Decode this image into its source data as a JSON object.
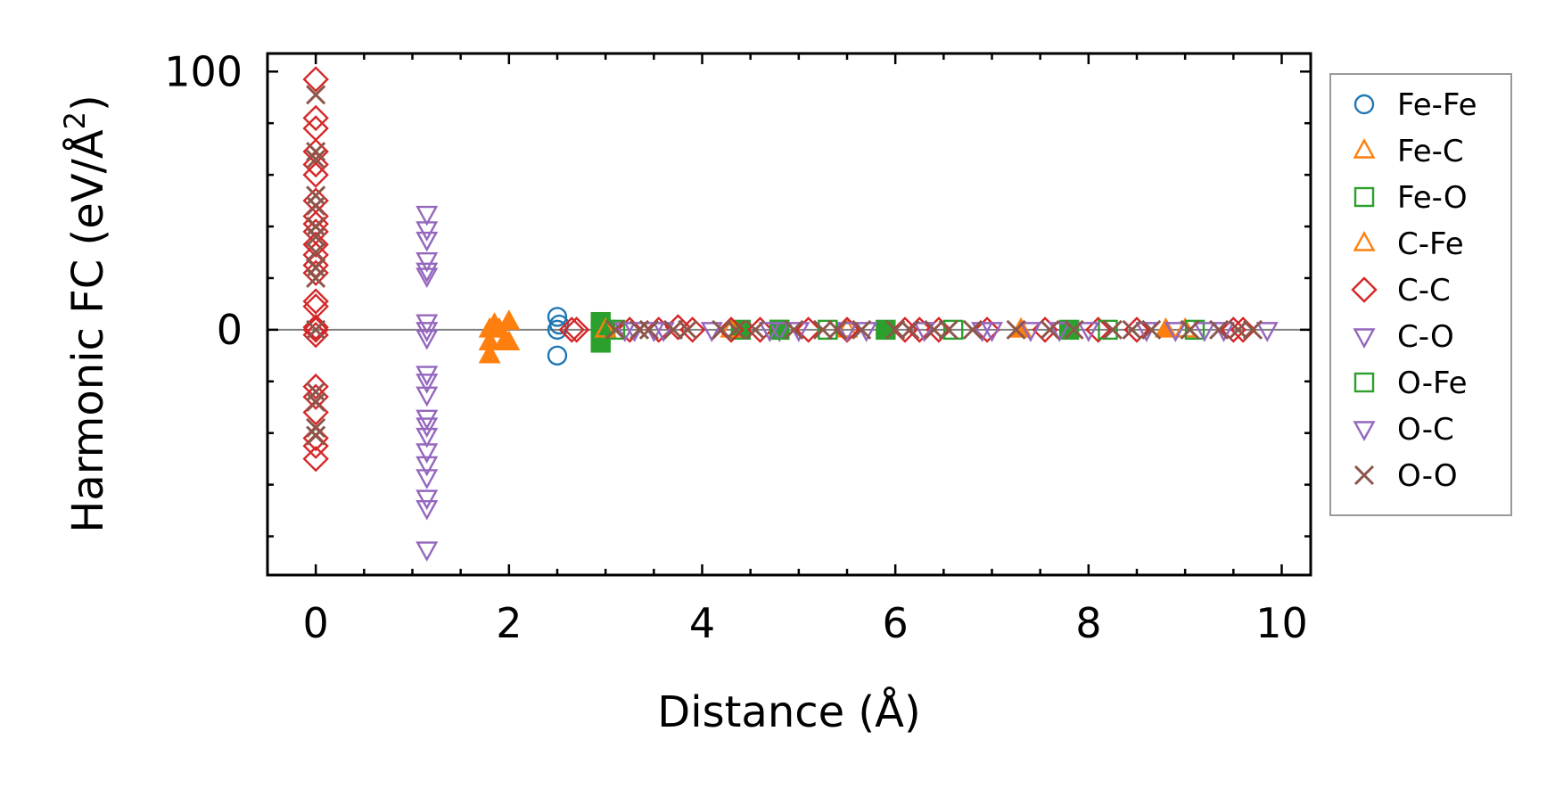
{
  "chart_data": {
    "type": "scatter",
    "xlabel": "Distance (Å)",
    "ylabel_main": "Harmonic FC (eV/Å",
    "ylabel_sup": "2",
    "ylabel_tail": ")",
    "xlim": [
      -0.5,
      10.3
    ],
    "ylim": [
      -95,
      107
    ],
    "xticks": [
      0,
      2,
      4,
      6,
      8,
      10
    ],
    "xtick_labels": [
      "0",
      "2",
      "4",
      "6",
      "8",
      "10"
    ],
    "yticks": [
      0,
      100
    ],
    "ytick_labels": [
      "0",
      "100"
    ],
    "zero_line": true,
    "grid": false,
    "legend_position": "outside-right",
    "series": [
      {
        "name": "Fe-Fe",
        "marker": "circle",
        "color": "#1f77b4",
        "filled": false,
        "points": [
          [
            2.5,
            5
          ],
          [
            2.5,
            0
          ],
          [
            2.5,
            -10
          ],
          [
            2.52,
            2
          ]
        ]
      },
      {
        "name": "Fe-C",
        "marker": "triangle-up",
        "color": "#ff7f0e",
        "filled": true,
        "points": [
          [
            1.8,
            0
          ],
          [
            1.8,
            -5
          ],
          [
            1.8,
            -10
          ],
          [
            1.85,
            2
          ],
          [
            1.9,
            0
          ],
          [
            1.95,
            -5
          ],
          [
            2.0,
            3
          ],
          [
            2.0,
            -5
          ],
          [
            7.3,
            0
          ],
          [
            8.8,
            0
          ]
        ]
      },
      {
        "name": "Fe-O",
        "marker": "square",
        "color": "#2ca02c",
        "filled": true,
        "points": [
          [
            2.95,
            3
          ],
          [
            2.95,
            0
          ],
          [
            2.95,
            -5
          ],
          [
            3.0,
            0
          ],
          [
            4.4,
            0
          ],
          [
            4.8,
            0
          ],
          [
            5.9,
            0
          ],
          [
            7.8,
            0
          ]
        ]
      },
      {
        "name": "C-Fe",
        "marker": "triangle-up",
        "color": "#ff7f0e",
        "filled": false,
        "points": [
          [
            3.0,
            0
          ],
          [
            4.3,
            0
          ],
          [
            5.5,
            0
          ],
          [
            7.3,
            0
          ],
          [
            9.0,
            0
          ]
        ]
      },
      {
        "name": "C-C",
        "marker": "diamond",
        "color": "#d62728",
        "filled": false,
        "points": [
          [
            0,
            97
          ],
          [
            0,
            82
          ],
          [
            0,
            78
          ],
          [
            0,
            69
          ],
          [
            0,
            64
          ],
          [
            0,
            60
          ],
          [
            0,
            50
          ],
          [
            0,
            44
          ],
          [
            0,
            41
          ],
          [
            0,
            38
          ],
          [
            0,
            33
          ],
          [
            0,
            29
          ],
          [
            0,
            25
          ],
          [
            0,
            22
          ],
          [
            0,
            11
          ],
          [
            0,
            9
          ],
          [
            0,
            1
          ],
          [
            0,
            0
          ],
          [
            0,
            -2
          ],
          [
            0,
            -22
          ],
          [
            0,
            -26
          ],
          [
            0,
            -32
          ],
          [
            0,
            -42
          ],
          [
            0,
            -45
          ],
          [
            0,
            -50
          ],
          [
            2.65,
            0
          ],
          [
            2.7,
            0
          ],
          [
            3.25,
            0
          ],
          [
            3.55,
            0
          ],
          [
            3.75,
            1
          ],
          [
            3.9,
            0
          ],
          [
            4.3,
            0
          ],
          [
            4.6,
            0
          ],
          [
            5.1,
            0
          ],
          [
            5.5,
            0
          ],
          [
            6.1,
            0
          ],
          [
            6.25,
            0
          ],
          [
            6.45,
            0
          ],
          [
            6.95,
            0
          ],
          [
            7.55,
            0
          ],
          [
            8.1,
            0
          ],
          [
            8.5,
            0
          ],
          [
            9.5,
            0
          ],
          [
            9.6,
            0
          ]
        ]
      },
      {
        "name": "C-O",
        "marker": "triangle-down",
        "color": "#9467bd",
        "filled": false,
        "points": [
          [
            1.15,
            45
          ],
          [
            1.15,
            39
          ],
          [
            1.15,
            35
          ],
          [
            1.15,
            27
          ],
          [
            1.15,
            23
          ],
          [
            1.15,
            21
          ],
          [
            1.15,
            3
          ],
          [
            1.15,
            0
          ],
          [
            1.15,
            -3
          ],
          [
            1.15,
            -17
          ],
          [
            1.15,
            -20
          ],
          [
            1.15,
            -25
          ],
          [
            1.15,
            -34
          ],
          [
            1.15,
            -37
          ],
          [
            1.15,
            -41
          ],
          [
            1.15,
            -47
          ],
          [
            1.15,
            -52
          ],
          [
            1.15,
            -57
          ],
          [
            1.15,
            -65
          ],
          [
            1.15,
            -69
          ],
          [
            1.15,
            -85
          ],
          [
            3.3,
            0
          ],
          [
            3.6,
            0
          ],
          [
            4.8,
            0
          ],
          [
            5.5,
            0
          ],
          [
            6.9,
            0
          ],
          [
            7.7,
            0
          ],
          [
            8.9,
            0
          ],
          [
            9.85,
            0
          ]
        ]
      },
      {
        "name": "O-Fe",
        "marker": "square",
        "color": "#2ca02c",
        "filled": false,
        "points": [
          [
            3.1,
            0
          ],
          [
            4.8,
            0
          ],
          [
            5.3,
            0
          ],
          [
            6.6,
            0
          ],
          [
            8.2,
            0
          ],
          [
            9.1,
            0
          ]
        ]
      },
      {
        "name": "O-C",
        "marker": "triangle-down",
        "color": "#9467bd",
        "filled": false,
        "points": [
          [
            3.2,
            0
          ],
          [
            3.5,
            0
          ],
          [
            4.1,
            0
          ],
          [
            4.7,
            0
          ],
          [
            5.0,
            0
          ],
          [
            5.7,
            0
          ],
          [
            6.3,
            0
          ],
          [
            7.0,
            0
          ],
          [
            7.4,
            0
          ],
          [
            8.0,
            0
          ],
          [
            8.6,
            0
          ],
          [
            9.2,
            0
          ],
          [
            9.4,
            0
          ]
        ]
      },
      {
        "name": "O-O",
        "marker": "x",
        "color": "#8c564b",
        "filled": false,
        "points": [
          [
            0,
            91
          ],
          [
            0,
            69
          ],
          [
            0,
            66
          ],
          [
            0,
            52
          ],
          [
            0,
            48
          ],
          [
            0,
            40
          ],
          [
            0,
            36
          ],
          [
            0,
            30
          ],
          [
            0,
            24
          ],
          [
            0,
            20
          ],
          [
            0,
            0
          ],
          [
            0,
            -24
          ],
          [
            0,
            -28
          ],
          [
            0,
            -38
          ],
          [
            0,
            -41
          ],
          [
            3.1,
            0
          ],
          [
            3.35,
            0
          ],
          [
            3.45,
            0
          ],
          [
            3.7,
            0
          ],
          [
            3.85,
            0
          ],
          [
            4.2,
            0
          ],
          [
            4.35,
            0
          ],
          [
            4.55,
            0
          ],
          [
            4.95,
            0
          ],
          [
            5.25,
            0
          ],
          [
            5.4,
            0
          ],
          [
            5.65,
            0
          ],
          [
            6.0,
            0
          ],
          [
            6.15,
            0
          ],
          [
            6.4,
            0
          ],
          [
            6.55,
            0
          ],
          [
            6.8,
            0
          ],
          [
            7.25,
            0
          ],
          [
            7.6,
            0
          ],
          [
            7.85,
            0
          ],
          [
            8.25,
            0
          ],
          [
            8.45,
            0
          ],
          [
            8.65,
            0
          ],
          [
            9.05,
            0
          ],
          [
            9.35,
            0
          ],
          [
            9.55,
            0
          ],
          [
            9.7,
            0
          ]
        ]
      }
    ]
  }
}
